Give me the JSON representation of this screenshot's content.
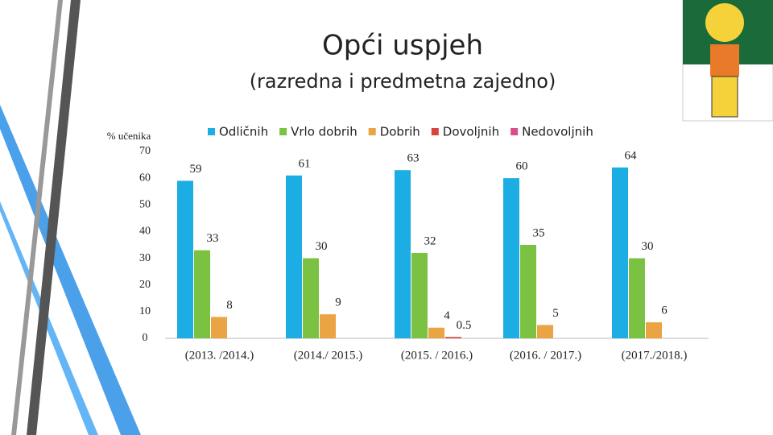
{
  "chart_data": {
    "type": "bar",
    "title": "Opći uspjeh",
    "subtitle": "(razredna i predmetna zajedno)",
    "y_axis_label": "% učenika",
    "categories": [
      "(2013. /2014.)",
      "(2014./ 2015.)",
      "(2015. / 2016.)",
      "(2016. / 2017.)",
      "(2017./2018.)"
    ],
    "series": [
      {
        "name": "Odličnih",
        "color": "#1cade4",
        "values": [
          59,
          61,
          63,
          60,
          64
        ]
      },
      {
        "name": "Vrlo dobrih",
        "color": "#7cc242",
        "values": [
          33,
          30,
          32,
          35,
          30
        ]
      },
      {
        "name": "Dobrih",
        "color": "#eaa444",
        "values": [
          8,
          9,
          4,
          5,
          6
        ]
      },
      {
        "name": "Dovoljnih",
        "color": "#d9453a",
        "values": [
          null,
          null,
          0.5,
          null,
          null
        ]
      },
      {
        "name": "Nedovoljnih",
        "color": "#d94f8d",
        "values": [
          null,
          null,
          null,
          null,
          null
        ]
      }
    ],
    "ylim": [
      0,
      70
    ],
    "yticks": [
      0,
      10,
      20,
      30,
      40,
      50,
      60,
      70
    ],
    "legend": "top"
  }
}
